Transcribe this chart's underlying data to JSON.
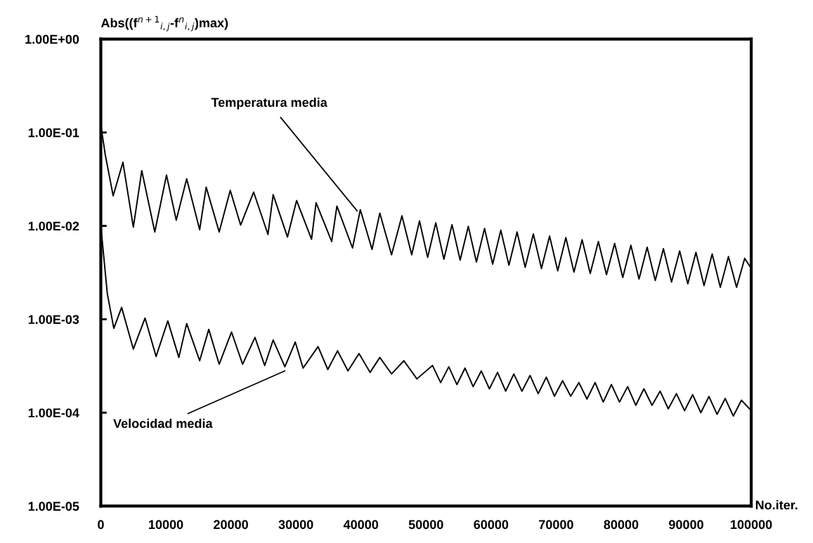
{
  "chart_data": {
    "type": "line",
    "ylabel": "Abs((f$^{n+1}$$_{i,j}$-f$^{n}$$_{i,j}$)max)",
    "xlabel": "No.iter.",
    "log": "y",
    "grid": false,
    "marker": "none",
    "line_style": "solid",
    "xlim": [
      0,
      100000
    ],
    "xticks": [
      0,
      10000,
      20000,
      30000,
      40000,
      50000,
      60000,
      70000,
      80000,
      90000,
      100000
    ],
    "ylim": [
      1e-05,
      1.0
    ],
    "yticks": [
      {
        "value": 1.0,
        "label": "1.00E+00"
      },
      {
        "value": 0.1,
        "label": "1.00E-01"
      },
      {
        "value": 0.01,
        "label": "1.00E-02"
      },
      {
        "value": 0.001,
        "label": "1.00E-03"
      },
      {
        "value": 0.0001,
        "label": "1.00E-04"
      },
      {
        "value": 1e-05,
        "label": "1.00E-05"
      }
    ],
    "series": [
      {
        "color": "#000000",
        "x": [
          0,
          700,
          1900,
          3400,
          5000,
          6300,
          8300,
          10100,
          11600,
          13200,
          15200,
          16200,
          18200,
          19900,
          21500,
          23500,
          25700,
          26500,
          28700,
          30100,
          32400,
          33100,
          35500,
          36300,
          38700,
          39900,
          41700,
          42900,
          44700,
          46300,
          47800,
          49000,
          50250,
          51500,
          52750,
          54000,
          55250,
          56500,
          57750,
          59000,
          60250,
          61500,
          62750,
          64000,
          65250,
          66500,
          67750,
          69000,
          70250,
          71500,
          72750,
          74000,
          75250,
          76500,
          77750,
          79000,
          80250,
          81500,
          82750,
          84000,
          85250,
          86500,
          87750,
          89000,
          90250,
          91500,
          92750,
          94000,
          95250,
          96500,
          97750,
          99000,
          100000
        ],
        "values": [
          0.12,
          0.057,
          0.021,
          0.048,
          0.0097,
          0.039,
          0.0086,
          0.035,
          0.0115,
          0.032,
          0.0091,
          0.026,
          0.0086,
          0.024,
          0.0102,
          0.023,
          0.0081,
          0.0216,
          0.0076,
          0.0187,
          0.0072,
          0.0177,
          0.0068,
          0.0163,
          0.0058,
          0.0149,
          0.0056,
          0.0137,
          0.0049,
          0.0128,
          0.0049,
          0.0113,
          0.0046,
          0.0108,
          0.0044,
          0.0103,
          0.0043,
          0.0099,
          0.0041,
          0.0094,
          0.0039,
          0.009,
          0.0038,
          0.0086,
          0.0036,
          0.0082,
          0.0035,
          0.0078,
          0.0033,
          0.0075,
          0.0032,
          0.0071,
          0.0031,
          0.0068,
          0.003,
          0.0065,
          0.0028,
          0.0062,
          0.0027,
          0.0059,
          0.0026,
          0.0057,
          0.0025,
          0.0054,
          0.0024,
          0.0052,
          0.0023,
          0.005,
          0.0022,
          0.0047,
          0.0022,
          0.0045,
          0.0035
        ]
      },
      {
        "color": "#000000",
        "x": [
          0,
          1000,
          2000,
          3200,
          5000,
          6800,
          8500,
          10300,
          12000,
          13200,
          15200,
          16600,
          18200,
          20100,
          21800,
          23700,
          25200,
          26500,
          28300,
          29900,
          31100,
          33400,
          34900,
          36400,
          38000,
          39700,
          41400,
          42900,
          44700,
          46600,
          48600,
          51000,
          52250,
          53500,
          54750,
          56000,
          57250,
          58500,
          59750,
          61000,
          62250,
          63500,
          64750,
          66000,
          67250,
          68500,
          69750,
          71000,
          72250,
          73500,
          74750,
          76000,
          77250,
          78500,
          79750,
          81000,
          82250,
          83500,
          84750,
          86000,
          87250,
          88500,
          89750,
          91000,
          92250,
          93500,
          94750,
          96000,
          97250,
          98500,
          100000
        ],
        "values": [
          0.01,
          0.00188,
          0.0008,
          0.00134,
          0.00048,
          0.00103,
          0.0004,
          0.00096,
          0.00039,
          0.0009,
          0.00036,
          0.00078,
          0.00033,
          0.00073,
          0.00033,
          0.00064,
          0.00032,
          0.0006,
          0.00031,
          0.00057,
          0.0003,
          0.00051,
          0.00029,
          0.00046,
          0.00028,
          0.00043,
          0.00027,
          0.00039,
          0.00026,
          0.00036,
          0.00023,
          0.00032,
          0.00021,
          0.00031,
          0.0002,
          0.0003,
          0.00019,
          0.00028,
          0.00018,
          0.00027,
          0.00017,
          0.00026,
          0.00017,
          0.00025,
          0.00016,
          0.00024,
          0.00015,
          0.00022,
          0.00015,
          0.00021,
          0.00014,
          0.00021,
          0.00013,
          0.0002,
          0.00013,
          0.00019,
          0.00012,
          0.00018,
          0.00012,
          0.00017,
          0.00011,
          0.00016,
          0.000105,
          0.000156,
          0.0001,
          0.000149,
          9.6e-05,
          0.000142,
          9.2e-05,
          0.000136,
          0.000105
        ]
      }
    ],
    "annotations": [
      {
        "text": "Temperatura media",
        "x": 39400,
        "y": 0.0145
      },
      {
        "text": "Velocidad media",
        "x": 28300,
        "y": 0.00028
      }
    ]
  }
}
